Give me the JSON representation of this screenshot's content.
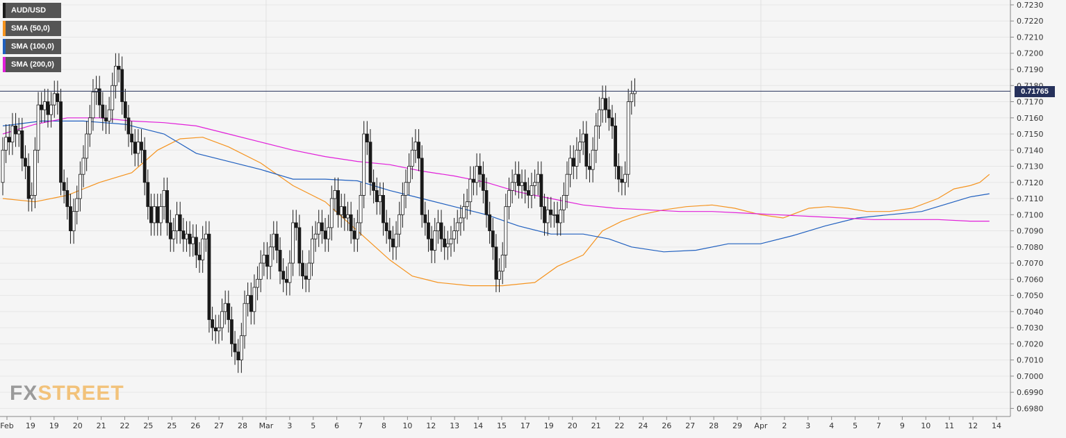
{
  "legend": {
    "items": [
      {
        "label": "AUD/USD",
        "color": "#1a1a1a"
      },
      {
        "label": "SMA (50,0)",
        "color": "#f5931e"
      },
      {
        "label": "SMA (100,0)",
        "color": "#1f5fbf"
      },
      {
        "label": "SMA (200,0)",
        "color": "#e11ed9"
      }
    ]
  },
  "watermark": {
    "fx": "FX",
    "street": "STREET"
  },
  "price_badge": "0.71765",
  "chart_data": {
    "type": "candlestick",
    "symbol": "AUD/USD",
    "y_axis": {
      "side": "right",
      "ylim": [
        0.6975,
        0.7233
      ],
      "tick_labels": [
        "0.7230",
        "0.7220",
        "0.7210",
        "0.7200",
        "0.7190",
        "0.7180",
        "0.7170",
        "0.7160",
        "0.7150",
        "0.7140",
        "0.7130",
        "0.7120",
        "0.7110",
        "0.7100",
        "0.7090",
        "0.7080",
        "0.7070",
        "0.7060",
        "0.7050",
        "0.7040",
        "0.7030",
        "0.7020",
        "0.7010",
        "0.7000",
        "0.6990",
        "0.6980"
      ]
    },
    "x_axis": {
      "tick_labels": [
        "Feb",
        "19",
        "19",
        "20",
        "21",
        "22",
        "25",
        "25",
        "26",
        "27",
        "28",
        "Mar",
        "3",
        "5",
        "6",
        "7",
        "8",
        "10",
        "12",
        "13",
        "14",
        "15",
        "17",
        "19",
        "20",
        "21",
        "22",
        "24",
        "26",
        "27",
        "28",
        "29",
        "Apr",
        "2",
        "3",
        "4",
        "5",
        "7",
        "9",
        "10",
        "11",
        "12",
        "14"
      ]
    },
    "current_price": 0.71765,
    "grid": true,
    "series": [
      {
        "name": "AUD/USD",
        "kind": "ohlc",
        "color": "#1a1a1a",
        "open": [
          0.712,
          0.714,
          0.7148,
          0.7145,
          0.7155,
          0.715,
          0.7152,
          0.7135,
          0.713,
          0.711,
          0.7112,
          0.714,
          0.7168,
          0.7165,
          0.717,
          0.7162,
          0.7168,
          0.7175,
          0.717,
          0.712,
          0.7115,
          0.7105,
          0.709,
          0.7102,
          0.711,
          0.7125,
          0.7135,
          0.715,
          0.716,
          0.7176,
          0.7178,
          0.7168,
          0.716,
          0.7158,
          0.7165,
          0.718,
          0.7192,
          0.719,
          0.717,
          0.716,
          0.715,
          0.7145,
          0.7138,
          0.7145,
          0.714,
          0.712,
          0.7105,
          0.7095,
          0.7105,
          0.7095,
          0.7105,
          0.7115,
          0.7095,
          0.7085,
          0.709,
          0.71,
          0.709,
          0.7085,
          0.7088,
          0.7082,
          0.7086,
          0.7075,
          0.7072,
          0.7085,
          0.7088,
          0.7035,
          0.703,
          0.7028,
          0.703,
          0.704,
          0.7045,
          0.7035,
          0.702,
          0.7015,
          0.701,
          0.7025,
          0.7045,
          0.705,
          0.704,
          0.7055,
          0.706,
          0.707,
          0.7075,
          0.7068,
          0.708,
          0.7088,
          0.7078,
          0.7065,
          0.706,
          0.7058,
          0.707,
          0.7095,
          0.7092,
          0.707,
          0.7062,
          0.706,
          0.707,
          0.7085,
          0.7088,
          0.7095,
          0.709,
          0.7085,
          0.7092,
          0.711,
          0.7115,
          0.71,
          0.7105,
          0.7098,
          0.71,
          0.709,
          0.7085,
          0.7095,
          0.7112,
          0.715,
          0.7145,
          0.712,
          0.7115,
          0.7108,
          0.7112,
          0.7095,
          0.709,
          0.7085,
          0.708,
          0.7088,
          0.71,
          0.7112,
          0.712,
          0.713,
          0.714,
          0.7145,
          0.7135,
          0.71,
          0.7095,
          0.7085,
          0.7078,
          0.709,
          0.7095,
          0.7085,
          0.708,
          0.7082,
          0.7085,
          0.709,
          0.7095,
          0.7098,
          0.7105,
          0.7108,
          0.7122,
          0.712,
          0.713,
          0.7125,
          0.7115,
          0.71,
          0.709,
          0.708,
          0.706,
          0.7065,
          0.7075,
          0.7105,
          0.7115,
          0.712,
          0.7125,
          0.7118,
          0.712,
          0.7115,
          0.7112,
          0.7118,
          0.712,
          0.7125,
          0.7105,
          0.7095,
          0.7103,
          0.71,
          0.71,
          0.7095,
          0.7103,
          0.7112,
          0.7125,
          0.7135,
          0.713,
          0.714,
          0.7145,
          0.715,
          0.713,
          0.7128,
          0.714,
          0.7155,
          0.7165,
          0.7172,
          0.7165,
          0.716,
          0.7155,
          0.713,
          0.7122,
          0.712,
          0.7125,
          0.717,
          0.7175
        ],
        "close": [
          0.714,
          0.7148,
          0.7145,
          0.7155,
          0.715,
          0.7152,
          0.7135,
          0.713,
          0.711,
          0.7112,
          0.714,
          0.7168,
          0.7165,
          0.717,
          0.7162,
          0.7168,
          0.7175,
          0.717,
          0.712,
          0.7115,
          0.7105,
          0.709,
          0.7102,
          0.711,
          0.7125,
          0.7135,
          0.715,
          0.716,
          0.7176,
          0.7178,
          0.7168,
          0.716,
          0.7158,
          0.7165,
          0.718,
          0.7192,
          0.719,
          0.717,
          0.716,
          0.715,
          0.7145,
          0.7138,
          0.7145,
          0.714,
          0.712,
          0.7105,
          0.7095,
          0.7105,
          0.7095,
          0.7105,
          0.7115,
          0.7095,
          0.7085,
          0.709,
          0.71,
          0.709,
          0.7085,
          0.7088,
          0.7082,
          0.7086,
          0.7075,
          0.7072,
          0.7085,
          0.7088,
          0.7035,
          0.703,
          0.7028,
          0.703,
          0.704,
          0.7045,
          0.7035,
          0.702,
          0.7015,
          0.701,
          0.7025,
          0.7045,
          0.705,
          0.704,
          0.7055,
          0.706,
          0.707,
          0.7075,
          0.7068,
          0.708,
          0.7088,
          0.7078,
          0.7065,
          0.706,
          0.7058,
          0.707,
          0.7095,
          0.7092,
          0.707,
          0.7062,
          0.706,
          0.707,
          0.7085,
          0.7088,
          0.7095,
          0.709,
          0.7085,
          0.7092,
          0.711,
          0.7115,
          0.71,
          0.7105,
          0.7098,
          0.71,
          0.709,
          0.7085,
          0.7095,
          0.7112,
          0.715,
          0.7145,
          0.712,
          0.7115,
          0.7108,
          0.7112,
          0.7095,
          0.709,
          0.7085,
          0.708,
          0.7088,
          0.71,
          0.7112,
          0.712,
          0.713,
          0.714,
          0.7145,
          0.7135,
          0.71,
          0.7095,
          0.7085,
          0.7078,
          0.709,
          0.7095,
          0.7085,
          0.708,
          0.7082,
          0.7085,
          0.709,
          0.7095,
          0.7098,
          0.7105,
          0.7108,
          0.7122,
          0.712,
          0.713,
          0.7125,
          0.7115,
          0.71,
          0.709,
          0.708,
          0.706,
          0.7065,
          0.7075,
          0.7105,
          0.7115,
          0.712,
          0.7125,
          0.7118,
          0.712,
          0.7115,
          0.7112,
          0.7118,
          0.712,
          0.7125,
          0.7105,
          0.7095,
          0.7103,
          0.71,
          0.71,
          0.7095,
          0.7103,
          0.7112,
          0.7125,
          0.7135,
          0.713,
          0.714,
          0.7145,
          0.715,
          0.713,
          0.7128,
          0.714,
          0.7155,
          0.7165,
          0.7172,
          0.7165,
          0.716,
          0.7155,
          0.713,
          0.7122,
          0.712,
          0.7125,
          0.717,
          0.7175,
          0.71765
        ]
      },
      {
        "name": "SMA (50,0)",
        "kind": "line",
        "color": "#f5931e",
        "points": [
          [
            0,
            0.711
          ],
          [
            10,
            0.7108
          ],
          [
            20,
            0.7112
          ],
          [
            30,
            0.712
          ],
          [
            40,
            0.7126
          ],
          [
            48,
            0.714
          ],
          [
            55,
            0.7147
          ],
          [
            62,
            0.7148
          ],
          [
            70,
            0.7142
          ],
          [
            80,
            0.7132
          ],
          [
            90,
            0.7118
          ],
          [
            100,
            0.7108
          ],
          [
            110,
            0.709
          ],
          [
            120,
            0.7072
          ],
          [
            127,
            0.7062
          ],
          [
            135,
            0.7058
          ],
          [
            145,
            0.7056
          ],
          [
            155,
            0.7056
          ],
          [
            165,
            0.7058
          ],
          [
            172,
            0.7068
          ],
          [
            180,
            0.7075
          ],
          [
            186,
            0.709
          ],
          [
            192,
            0.7096
          ],
          [
            198,
            0.71
          ],
          [
            205,
            0.7103
          ],
          [
            212,
            0.7105
          ],
          [
            220,
            0.7106
          ],
          [
            227,
            0.7104
          ],
          [
            235,
            0.71
          ],
          [
            242,
            0.7098
          ],
          [
            250,
            0.7104
          ],
          [
            256,
            0.7105
          ],
          [
            262,
            0.7104
          ],
          [
            268,
            0.7102
          ],
          [
            275,
            0.7102
          ],
          [
            282,
            0.7104
          ],
          [
            290,
            0.711
          ],
          [
            295,
            0.7116
          ],
          [
            300,
            0.7118
          ],
          [
            303,
            0.712
          ],
          [
            306,
            0.7125
          ]
        ]
      },
      {
        "name": "SMA (100,0)",
        "kind": "line",
        "color": "#1f5fbf",
        "points": [
          [
            0,
            0.7155
          ],
          [
            12,
            0.7158
          ],
          [
            25,
            0.7158
          ],
          [
            38,
            0.7156
          ],
          [
            50,
            0.715
          ],
          [
            60,
            0.7138
          ],
          [
            70,
            0.7133
          ],
          [
            80,
            0.7128
          ],
          [
            90,
            0.7122
          ],
          [
            100,
            0.7122
          ],
          [
            110,
            0.7121
          ],
          [
            120,
            0.7115
          ],
          [
            130,
            0.711
          ],
          [
            140,
            0.7105
          ],
          [
            150,
            0.71
          ],
          [
            160,
            0.7093
          ],
          [
            170,
            0.7088
          ],
          [
            180,
            0.7088
          ],
          [
            188,
            0.7085
          ],
          [
            195,
            0.708
          ],
          [
            205,
            0.7077
          ],
          [
            215,
            0.7078
          ],
          [
            225,
            0.7082
          ],
          [
            235,
            0.7082
          ],
          [
            245,
            0.7087
          ],
          [
            255,
            0.7093
          ],
          [
            265,
            0.7098
          ],
          [
            275,
            0.71
          ],
          [
            285,
            0.7102
          ],
          [
            295,
            0.7108
          ],
          [
            300,
            0.7111
          ],
          [
            306,
            0.7113
          ]
        ]
      },
      {
        "name": "SMA (200,0)",
        "kind": "line",
        "color": "#e11ed9",
        "points": [
          [
            0,
            0.715
          ],
          [
            10,
            0.7156
          ],
          [
            20,
            0.716
          ],
          [
            30,
            0.716
          ],
          [
            40,
            0.7158
          ],
          [
            50,
            0.7157
          ],
          [
            60,
            0.7155
          ],
          [
            70,
            0.715
          ],
          [
            80,
            0.7145
          ],
          [
            90,
            0.714
          ],
          [
            100,
            0.7136
          ],
          [
            110,
            0.7133
          ],
          [
            120,
            0.7131
          ],
          [
            130,
            0.7127
          ],
          [
            140,
            0.7124
          ],
          [
            150,
            0.712
          ],
          [
            160,
            0.7114
          ],
          [
            170,
            0.711
          ],
          [
            180,
            0.7106
          ],
          [
            190,
            0.7104
          ],
          [
            200,
            0.7103
          ],
          [
            210,
            0.7102
          ],
          [
            220,
            0.7102
          ],
          [
            230,
            0.7101
          ],
          [
            240,
            0.71
          ],
          [
            250,
            0.7099
          ],
          [
            260,
            0.7098
          ],
          [
            270,
            0.7097
          ],
          [
            280,
            0.7097
          ],
          [
            290,
            0.7097
          ],
          [
            300,
            0.7096
          ],
          [
            306,
            0.7096
          ]
        ]
      }
    ]
  }
}
